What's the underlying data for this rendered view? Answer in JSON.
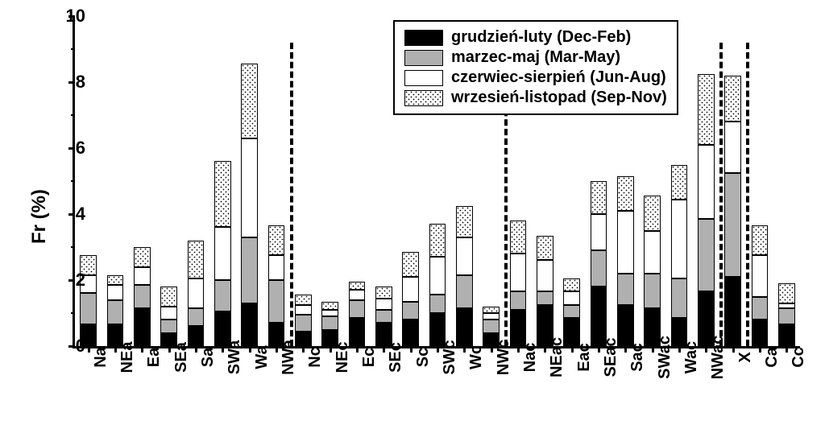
{
  "chart": {
    "type": "stacked-bar",
    "ylabel": "Fr (%)",
    "ylim": [
      0,
      10
    ],
    "ytick_step": 2,
    "background_color": "#ffffff",
    "axis_color": "#000000",
    "label_fontsize": 24,
    "tick_fontsize": 22,
    "xtick_fontsize": 20,
    "legend_fontsize": 20,
    "bar_width_ratio": 0.62,
    "series": [
      {
        "key": "dec_feb",
        "label": "grudzień-luty (Dec-Feb)",
        "fill": "#000000",
        "pattern": "solid"
      },
      {
        "key": "mar_may",
        "label": "marzec-maj (Mar-May)",
        "fill": "#b0b0b0",
        "pattern": "solid"
      },
      {
        "key": "jun_aug",
        "label": "czerwiec-sierpień (Jun-Aug)",
        "fill": "#ffffff",
        "pattern": "solid"
      },
      {
        "key": "sep_nov",
        "label": "wrzesień-listopad (Sep-Nov)",
        "fill": "#ffffff",
        "pattern": "dots"
      }
    ],
    "categories": [
      "Na",
      "NEa",
      "Ea",
      "SEa",
      "Sa",
      "SWa",
      "Wa",
      "NWa",
      "Nc",
      "NEc",
      "Ec",
      "SEc",
      "Sc",
      "SWc",
      "Wc",
      "NWc",
      "Nac",
      "NEac",
      "Eac",
      "SEac",
      "Sac",
      "SWac",
      "Wac",
      "NWac",
      "X",
      "Ca",
      "Cc"
    ],
    "values": {
      "dec_feb": [
        0.65,
        0.65,
        1.15,
        0.4,
        0.6,
        1.05,
        1.3,
        0.7,
        0.45,
        0.5,
        0.85,
        0.7,
        0.8,
        1.0,
        1.15,
        0.4,
        1.1,
        1.25,
        0.85,
        1.8,
        1.25,
        1.15,
        0.85,
        1.65,
        2.1,
        0.8,
        0.65
      ],
      "mar_may": [
        0.95,
        0.75,
        0.7,
        0.4,
        0.55,
        0.95,
        2.0,
        1.3,
        0.5,
        0.4,
        0.55,
        0.4,
        0.55,
        0.55,
        1.0,
        0.4,
        0.55,
        0.4,
        0.4,
        1.1,
        0.95,
        1.05,
        1.2,
        2.2,
        3.15,
        0.7,
        0.5
      ],
      "jun_aug": [
        0.55,
        0.45,
        0.55,
        0.4,
        0.9,
        1.6,
        3.0,
        0.75,
        0.3,
        0.2,
        0.3,
        0.35,
        0.75,
        1.15,
        1.15,
        0.2,
        1.15,
        0.95,
        0.4,
        1.1,
        1.9,
        1.3,
        2.4,
        2.25,
        1.55,
        1.25,
        0.15
      ],
      "sep_nov": [
        0.6,
        0.3,
        0.6,
        0.6,
        1.15,
        2.0,
        2.25,
        0.9,
        0.3,
        0.25,
        0.25,
        0.35,
        0.75,
        1.0,
        0.95,
        0.2,
        1.0,
        0.75,
        0.4,
        1.0,
        1.05,
        1.05,
        1.05,
        2.15,
        1.4,
        0.9,
        0.6
      ]
    },
    "vlines_after_index": [
      7,
      15,
      23,
      24
    ],
    "vline_height_pct": 0.92
  }
}
